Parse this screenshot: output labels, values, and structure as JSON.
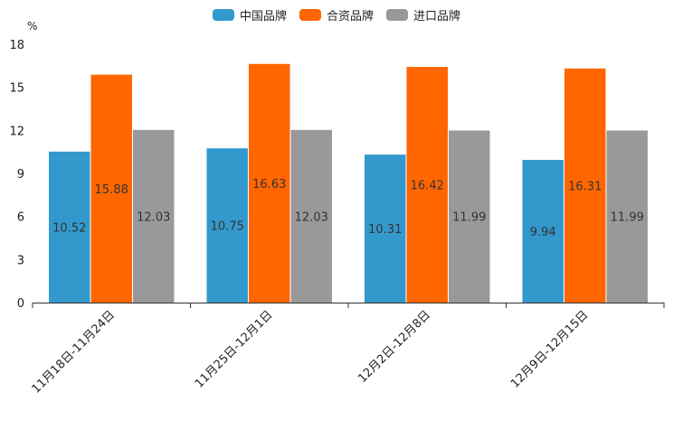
{
  "chart_data": {
    "type": "bar",
    "title": "",
    "unit": "%",
    "xlabel": "",
    "ylabel": "%",
    "ylim": [
      0,
      18
    ],
    "yticks": [
      0,
      3,
      6,
      9,
      12,
      15,
      18
    ],
    "categories": [
      "11月18日-11月24日",
      "11月25日-12月1日",
      "12月2日-12月8日",
      "12月9日-12月15日"
    ],
    "series": [
      {
        "name": "中国品牌",
        "color": "#3399cc",
        "values": [
          10.52,
          10.75,
          10.31,
          9.94
        ]
      },
      {
        "name": "合资品牌",
        "color": "#ff6600",
        "values": [
          15.88,
          16.63,
          16.42,
          16.31
        ]
      },
      {
        "name": "进口品牌",
        "color": "#999999",
        "values": [
          12.03,
          12.03,
          11.99,
          11.99
        ]
      }
    ],
    "legend_position": "top-center",
    "grid": false
  }
}
